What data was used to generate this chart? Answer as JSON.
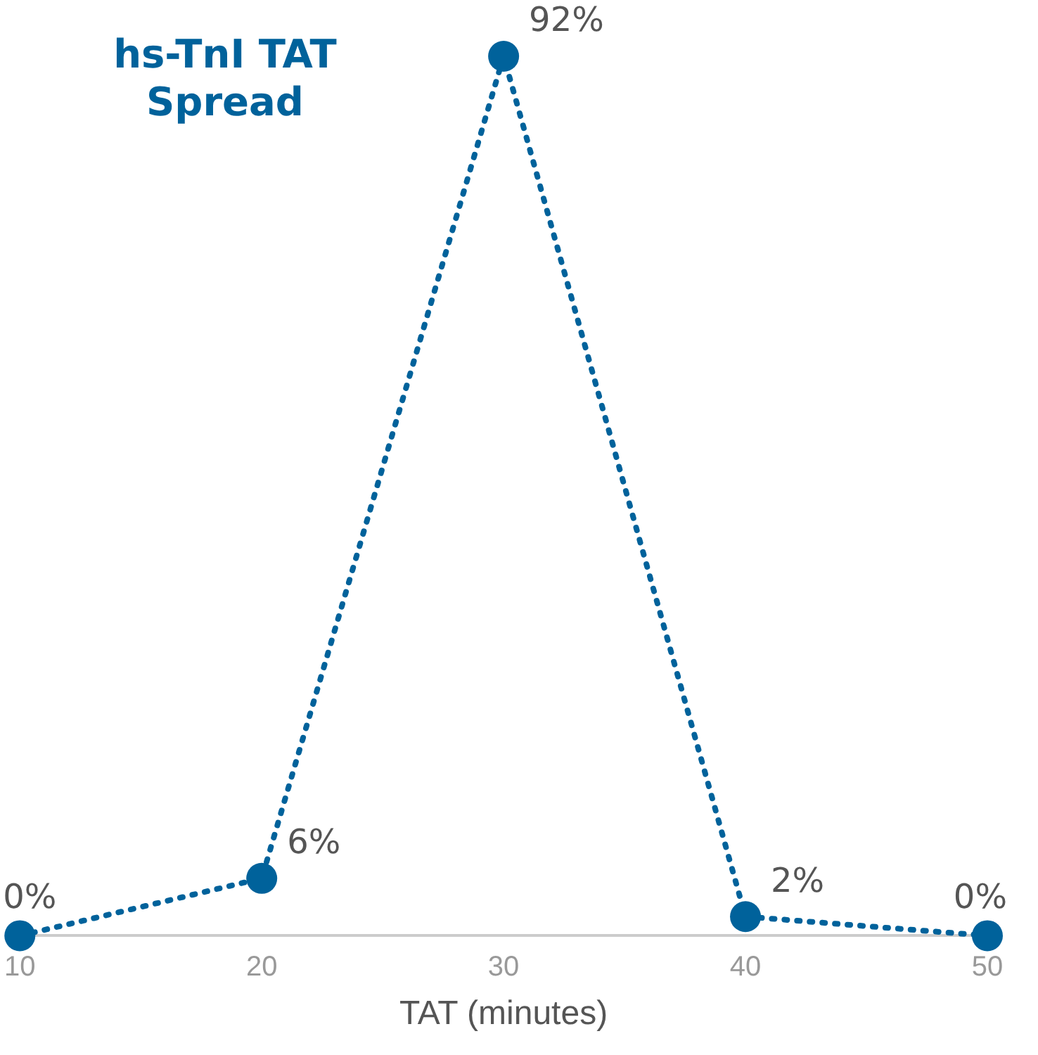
{
  "chart_data": {
    "type": "line",
    "title": "hs-TnI TAT Spread",
    "xlabel": "TAT (minutes)",
    "x": [
      10,
      20,
      30,
      40,
      50
    ],
    "series": [
      {
        "color": "#00629b",
        "values": [
          0,
          6,
          92,
          2,
          0
        ],
        "value_labels": [
          "0%",
          "6%",
          "92%",
          "2%",
          "0%"
        ]
      }
    ],
    "xlim": [
      10,
      50
    ],
    "xticks": [
      10,
      20,
      30,
      40,
      50
    ],
    "grid": false,
    "legend": false,
    "tick_labels": "x",
    "marker": "circle",
    "line_style": "dotted"
  }
}
